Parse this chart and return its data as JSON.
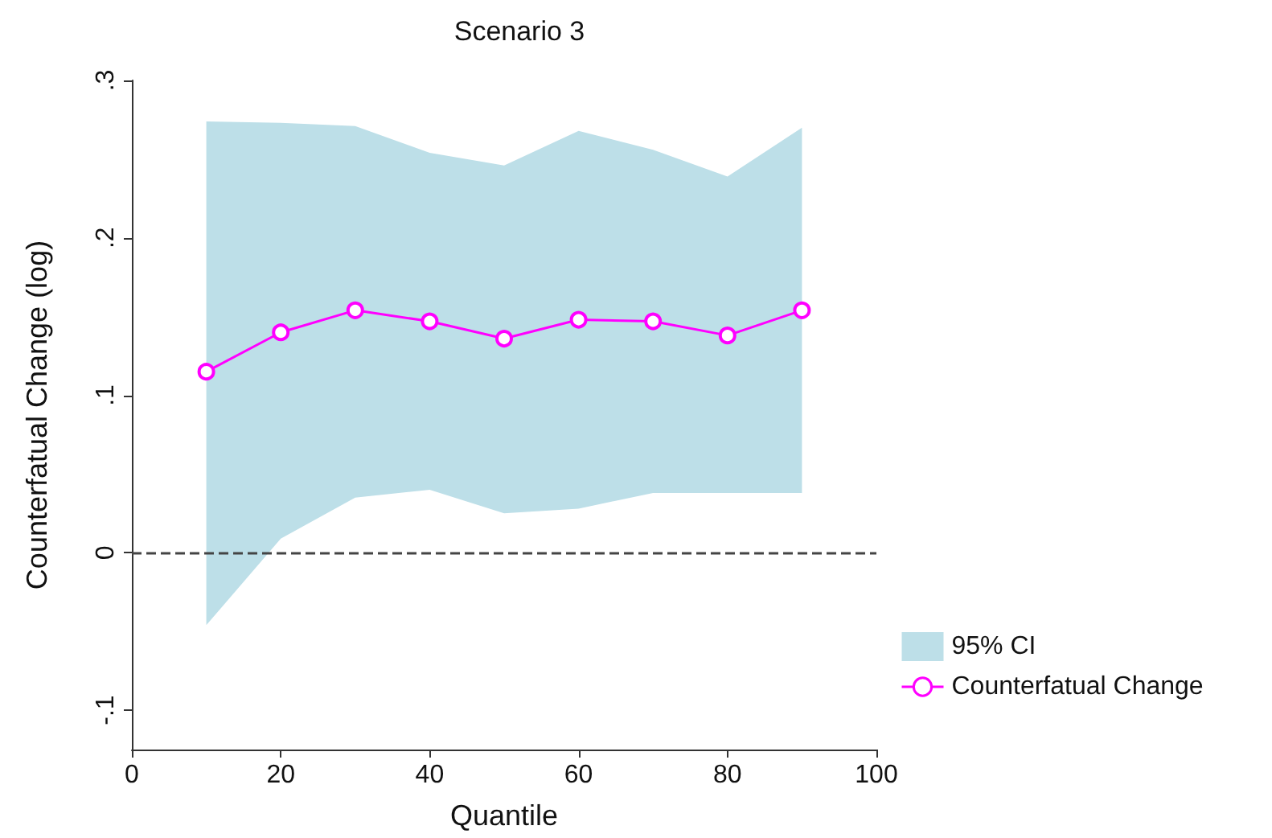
{
  "chart_data": {
    "type": "line",
    "title": "Scenario 3",
    "xlabel": "Quantile",
    "ylabel": "Counterfatual Change (log)",
    "x": [
      10,
      20,
      30,
      40,
      50,
      60,
      70,
      80,
      90
    ],
    "series": [
      {
        "name": "95% CI",
        "type": "area",
        "color": "#bddfe8",
        "values": [
          null,
          null,
          null,
          null,
          null,
          null,
          null,
          null,
          null
        ],
        "lower": [
          -0.046,
          0.009,
          0.035,
          0.04,
          0.025,
          0.028,
          0.038,
          0.038,
          0.038
        ],
        "upper": [
          0.274,
          0.273,
          0.271,
          0.254,
          0.246,
          0.268,
          0.256,
          0.239,
          0.27
        ]
      },
      {
        "name": "Counterfatual Change",
        "color": "#ff00ff",
        "values": [
          0.115,
          0.14,
          0.154,
          0.147,
          0.136,
          0.148,
          0.147,
          0.138,
          0.154
        ]
      }
    ],
    "xlim": [
      0,
      100
    ],
    "xticks": [
      0,
      20,
      40,
      60,
      80,
      100
    ],
    "ylim": [
      -0.125,
      0.3
    ],
    "yticks": [
      {
        "value": -0.1,
        "label": "-.1"
      },
      {
        "value": 0,
        "label": "0"
      },
      {
        "value": 0.1,
        "label": ".1"
      },
      {
        "value": 0.2,
        "label": ".2"
      },
      {
        "value": 0.3,
        "label": ".3"
      }
    ],
    "ref_lines": [
      {
        "axis": "y",
        "value": 0,
        "color": "#444444",
        "line_style": "dashed"
      }
    ],
    "marker": "circle",
    "line_style": "solid",
    "grid": false,
    "legend": "bottom right"
  }
}
